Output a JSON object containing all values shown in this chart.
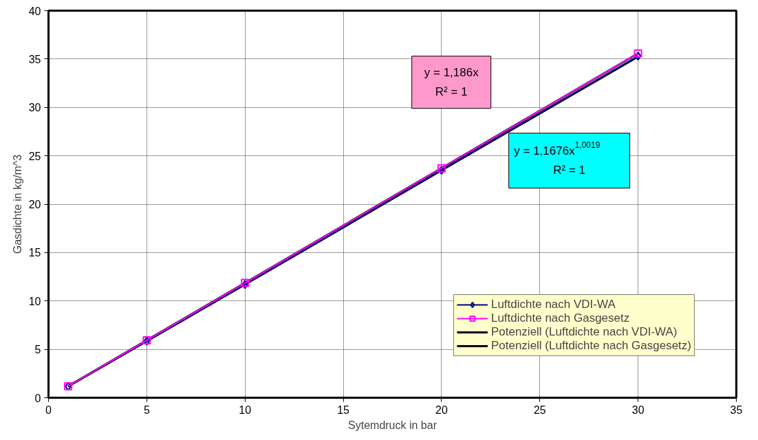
{
  "chart_data": {
    "type": "line",
    "xlabel": "Sytemdruck in bar",
    "ylabel": "Gasdichte in kg/m^3",
    "x": [
      1,
      5,
      10,
      20,
      30
    ],
    "series": [
      {
        "name": "Luftdichte nach VDI-WA",
        "color": "#000080",
        "marker": "diamond",
        "values": [
          1.17,
          5.85,
          11.7,
          23.5,
          35.3
        ]
      },
      {
        "name": "Luftdichte nach Gasgesetz",
        "color": "#ff00ff",
        "marker": "square",
        "values": [
          1.19,
          5.93,
          11.86,
          23.72,
          35.58
        ]
      },
      {
        "name": "Potenziell (Luftdichte nach VDI-WA)",
        "color": "#000000",
        "marker": "none",
        "x": [
          1,
          5,
          10,
          20,
          30
        ],
        "values": [
          1.17,
          5.85,
          11.7,
          23.5,
          35.25
        ]
      },
      {
        "name": "Potenziell (Luftdichte nach Gasgesetz)",
        "color": "#000000",
        "marker": "none",
        "x": [
          1,
          30
        ],
        "values": [
          1.19,
          35.58
        ]
      }
    ],
    "annotations": [
      "y = 1,186x\nR² = 1",
      "y = 1,1676x$^{1,0019}$\nR² = 1"
    ],
    "xlim": [
      0,
      35
    ],
    "xticks": [
      0,
      5,
      10,
      15,
      20,
      25,
      30,
      35
    ],
    "ylim": [
      0,
      40
    ],
    "yticks": [
      0,
      5,
      10,
      15,
      20,
      25,
      30,
      35,
      40
    ],
    "grid": true,
    "legend": "bottom right"
  }
}
